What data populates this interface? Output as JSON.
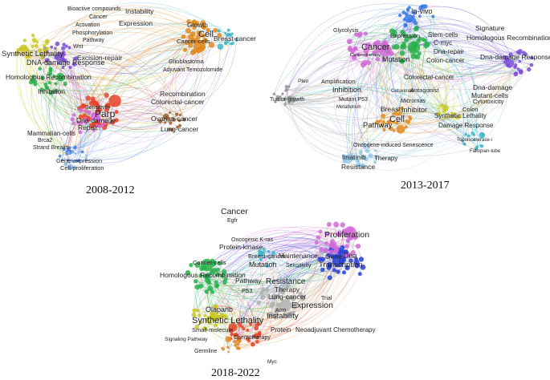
{
  "panels": [
    {
      "period": "2008-2012",
      "clusters": [
        {
          "color": "#3c78e6",
          "size": "small"
        },
        {
          "color": "#e8432c",
          "size": "large"
        },
        {
          "color": "#e08a1e",
          "size": "large"
        },
        {
          "color": "#27b24a",
          "size": "medium"
        },
        {
          "color": "#7b4fd6",
          "size": "medium"
        },
        {
          "color": "#c8c81e",
          "size": "medium"
        },
        {
          "color": "#d26ad6",
          "size": "medium"
        },
        {
          "color": "#3ab7c9",
          "size": "small"
        },
        {
          "color": "#9b5a2a",
          "size": "small"
        },
        {
          "color": "#8fb8e8",
          "size": "small"
        }
      ],
      "terms": [
        "Bioactive compounds",
        "Instability",
        "Cancer",
        "Activation",
        "Expression",
        "Phosphorylation",
        "Pathway",
        "Wnt",
        "Growth",
        "Cell",
        "Cancer-cells",
        "Breast-cancer",
        "Synthetic Lethality",
        "DNA-damage Response",
        "Excision-repair",
        "Homologous Recombination",
        "Glioblastoma",
        "Adjuvant Temozolomide",
        "Inhibition",
        "Sensitivity",
        "Parp",
        "Recombination",
        "Colorectal-cancer",
        "Dna-damage",
        "Repair",
        "Ovarian-cancer",
        "Lung-cancer",
        "Mammalian-cells",
        "Brca2",
        "Strand Breaks",
        "Gene-expression",
        "Cell-proliferation"
      ]
    },
    {
      "period": "2013-2017",
      "clusters": [
        {
          "color": "#3c78e6",
          "size": "medium"
        },
        {
          "color": "#e08a1e",
          "size": "medium"
        },
        {
          "color": "#27b24a",
          "size": "large"
        },
        {
          "color": "#d26ad6",
          "size": "large"
        },
        {
          "color": "#7b4fd6",
          "size": "medium"
        },
        {
          "color": "#8fc8e8",
          "size": "medium"
        },
        {
          "color": "#c8c81e",
          "size": "small"
        },
        {
          "color": "#3ab7c9",
          "size": "small"
        },
        {
          "color": "#999999",
          "size": "small"
        }
      ],
      "terms": [
        "In-vivo",
        "Glycolysis",
        "Signature",
        "Cancer",
        "Expression",
        "Stem-cells",
        "Homologous Recombination",
        "C-myc",
        "Cancer-therapy",
        "Dna-repair",
        "Dna-damage Response",
        "Mutation",
        "Colon-cancer",
        "Pten",
        "Amplification",
        "Colorectal-cancer",
        "Inhibition",
        "Cetuximab",
        "Antagonist",
        "Dna-damage",
        "Mutant P53",
        "Micrornas",
        "Mutant-cells",
        "Tumor-growth",
        "Metabolism",
        "Breast",
        "Inhibitor",
        "Cytotoxicity",
        "Cell",
        "Colon",
        "Synthetic Lethality",
        "Pathway",
        "Damage Response",
        "Topoisomerase-i",
        "Oncogene-induced Senescence",
        "Fallopian-tube",
        "Imatinib",
        "Therapy",
        "Resistance"
      ]
    },
    {
      "period": "2018-2022",
      "clusters": [
        {
          "color": "#2a3fd8",
          "size": "large"
        },
        {
          "color": "#27b24a",
          "size": "large"
        },
        {
          "color": "#d26ad6",
          "size": "large"
        },
        {
          "color": "#e8432c",
          "size": "medium"
        },
        {
          "color": "#b0b0b0",
          "size": "large"
        },
        {
          "color": "#c8c81e",
          "size": "medium"
        },
        {
          "color": "#3ab7c9",
          "size": "small"
        },
        {
          "color": "#e08a1e",
          "size": "small"
        }
      ],
      "terms": [
        "Cancer",
        "Egfr",
        "Proliferation",
        "Oncogenic K-ras",
        "Protein-kinase",
        "Dna",
        "Gene",
        "Cancer-cells",
        "Breast-cancer",
        "Maintenance",
        "Transcription",
        "Mutation",
        "Sensitivity",
        "Homologous Recombination",
        "Pathway",
        "Resistance",
        "P53",
        "Therapy",
        "Lung-cancer",
        "Trial",
        "Expression",
        "Atm",
        "Olaparib",
        "Instability",
        "Synthetic Lethality",
        "Small-molecule",
        "Protein",
        "Neoadjuvant Chemotherapy",
        "Signaling Pathway",
        "Chemotherapy",
        "Germline",
        "Myc"
      ]
    }
  ]
}
